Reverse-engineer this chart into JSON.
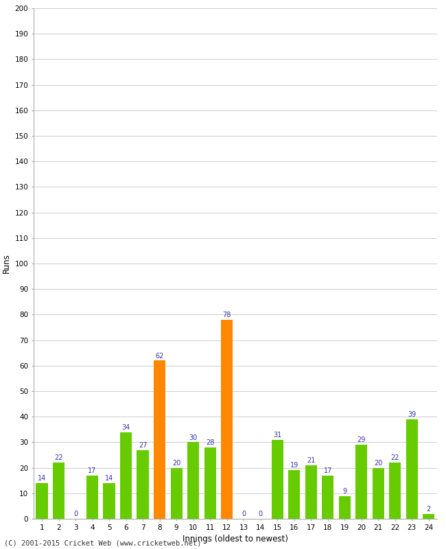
{
  "xlabel": "Innings (oldest to newest)",
  "ylabel": "Runs",
  "values": [
    14,
    22,
    0,
    17,
    14,
    34,
    27,
    62,
    20,
    30,
    28,
    78,
    0,
    0,
    31,
    19,
    21,
    17,
    9,
    29,
    20,
    22,
    39,
    2
  ],
  "labels": [
    "1",
    "2",
    "3",
    "4",
    "5",
    "6",
    "7",
    "8",
    "9",
    "10",
    "11",
    "12",
    "13",
    "14",
    "15",
    "16",
    "17",
    "18",
    "19",
    "20",
    "21",
    "22",
    "23",
    "24"
  ],
  "orange_bars": [
    7,
    11
  ],
  "bar_color_green": "#66cc00",
  "bar_color_orange": "#ff8800",
  "label_color": "#3333aa",
  "ylim": [
    0,
    200
  ],
  "ytick_step": 10,
  "background_color": "#ffffff",
  "grid_color": "#cccccc",
  "footer": "(C) 2001-2015 Cricket Web (www.cricketweb.net)"
}
